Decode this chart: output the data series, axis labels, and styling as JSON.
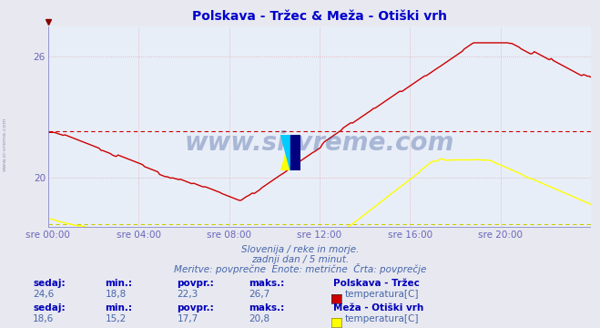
{
  "title": "Polskava - Tržec & Meža - Otiški vrh",
  "title_color": "#0000cc",
  "bg_color": "#e8e8f0",
  "plot_bg_color": "#e8eef8",
  "axis_color": "#6666bb",
  "grid_color": "#ddaaaa",
  "text_color": "#4466aa",
  "bold_text_color": "#0000bb",
  "line1_color": "#cc0000",
  "line2_color": "#ffff00",
  "avg1": 22.3,
  "avg2": 17.7,
  "ymin": 17.5,
  "ymax": 27.5,
  "ytick_vals": [
    20,
    26
  ],
  "xtick_vals": [
    0,
    4,
    8,
    12,
    16,
    20
  ],
  "xtick_labels": [
    "sre 00:00",
    "sre 04:00",
    "sre 08:00",
    "sre 12:00",
    "sre 16:00",
    "sre 20:00"
  ],
  "subtitle1": "Slovenija / reke in morje.",
  "subtitle2": "zadnji dan / 5 minut.",
  "subtitle3": "Meritve: povprečne  Enote: metrične  Črta: povprečje",
  "station1_name": "Polskava - Tržec",
  "station2_name": "Meža - Otiški vrh",
  "var_name": "temperatura[C]",
  "s1_sedaj": "24,6",
  "s1_min": "18,8",
  "s1_povpr": "22,3",
  "s1_maks": "26,7",
  "s2_sedaj": "18,6",
  "s2_min": "15,2",
  "s2_povpr": "17,7",
  "s2_maks": "20,8",
  "watermark": "www.si-vreme.com",
  "watermark_color": "#1a3a8a",
  "sidebar_text": "www.si-vreme.com"
}
